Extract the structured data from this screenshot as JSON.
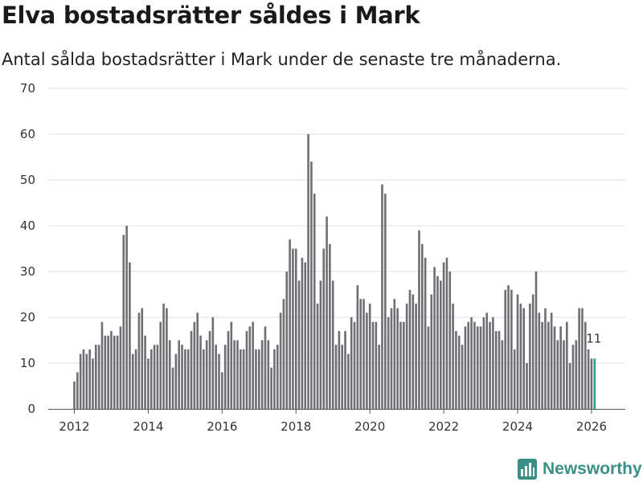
{
  "header": {
    "title": "Elva bostadsrätter såldes i Mark",
    "subtitle": "Antal sålda bostadsrätter i Mark under de senaste tre månaderna."
  },
  "brand": {
    "name": "Newsworthy",
    "color": "#3a8f86"
  },
  "colors": {
    "bar": "#6e6e73",
    "highlight": "#2a9d8f",
    "grid": "#dddddd",
    "axis": "#555555"
  },
  "chart_data": {
    "type": "bar",
    "title": "Elva bostadsrätter såldes i Mark",
    "xlabel": "",
    "ylabel": "",
    "ylim": [
      0,
      70
    ],
    "yticks": [
      0,
      10,
      20,
      30,
      40,
      50,
      60,
      70
    ],
    "xticks": [
      2012,
      2014,
      2016,
      2018,
      2020,
      2022,
      2024,
      2026
    ],
    "grid": true,
    "start": "2012-01",
    "frequency": "monthly",
    "highlight_label": "11",
    "values": [
      6,
      8,
      12,
      13,
      12,
      13,
      11,
      14,
      14,
      19,
      16,
      16,
      17,
      16,
      16,
      18,
      38,
      40,
      32,
      12,
      13,
      21,
      22,
      16,
      11,
      13,
      14,
      14,
      19,
      23,
      22,
      15,
      9,
      12,
      15,
      14,
      13,
      13,
      17,
      19,
      21,
      16,
      13,
      15,
      17,
      20,
      14,
      12,
      8,
      14,
      17,
      19,
      15,
      15,
      13,
      13,
      17,
      18,
      19,
      13,
      13,
      15,
      18,
      15,
      9,
      13,
      14,
      21,
      24,
      30,
      37,
      35,
      35,
      28,
      33,
      32,
      60,
      54,
      47,
      23,
      28,
      35,
      42,
      36,
      28,
      14,
      17,
      14,
      17,
      12,
      20,
      19,
      27,
      24,
      24,
      21,
      23,
      19,
      19,
      14,
      49,
      47,
      20,
      22,
      24,
      22,
      19,
      19,
      23,
      26,
      25,
      23,
      39,
      36,
      33,
      18,
      25,
      31,
      29,
      28,
      32,
      33,
      30,
      23,
      17,
      16,
      14,
      18,
      19,
      20,
      19,
      18,
      18,
      20,
      21,
      19,
      20,
      17,
      17,
      15,
      26,
      27,
      26,
      13,
      25,
      23,
      22,
      10,
      23,
      25,
      30,
      21,
      19,
      22,
      19,
      21,
      18,
      15,
      18,
      15,
      19,
      10,
      14,
      15,
      22,
      22,
      19,
      13,
      11,
      11
    ]
  }
}
